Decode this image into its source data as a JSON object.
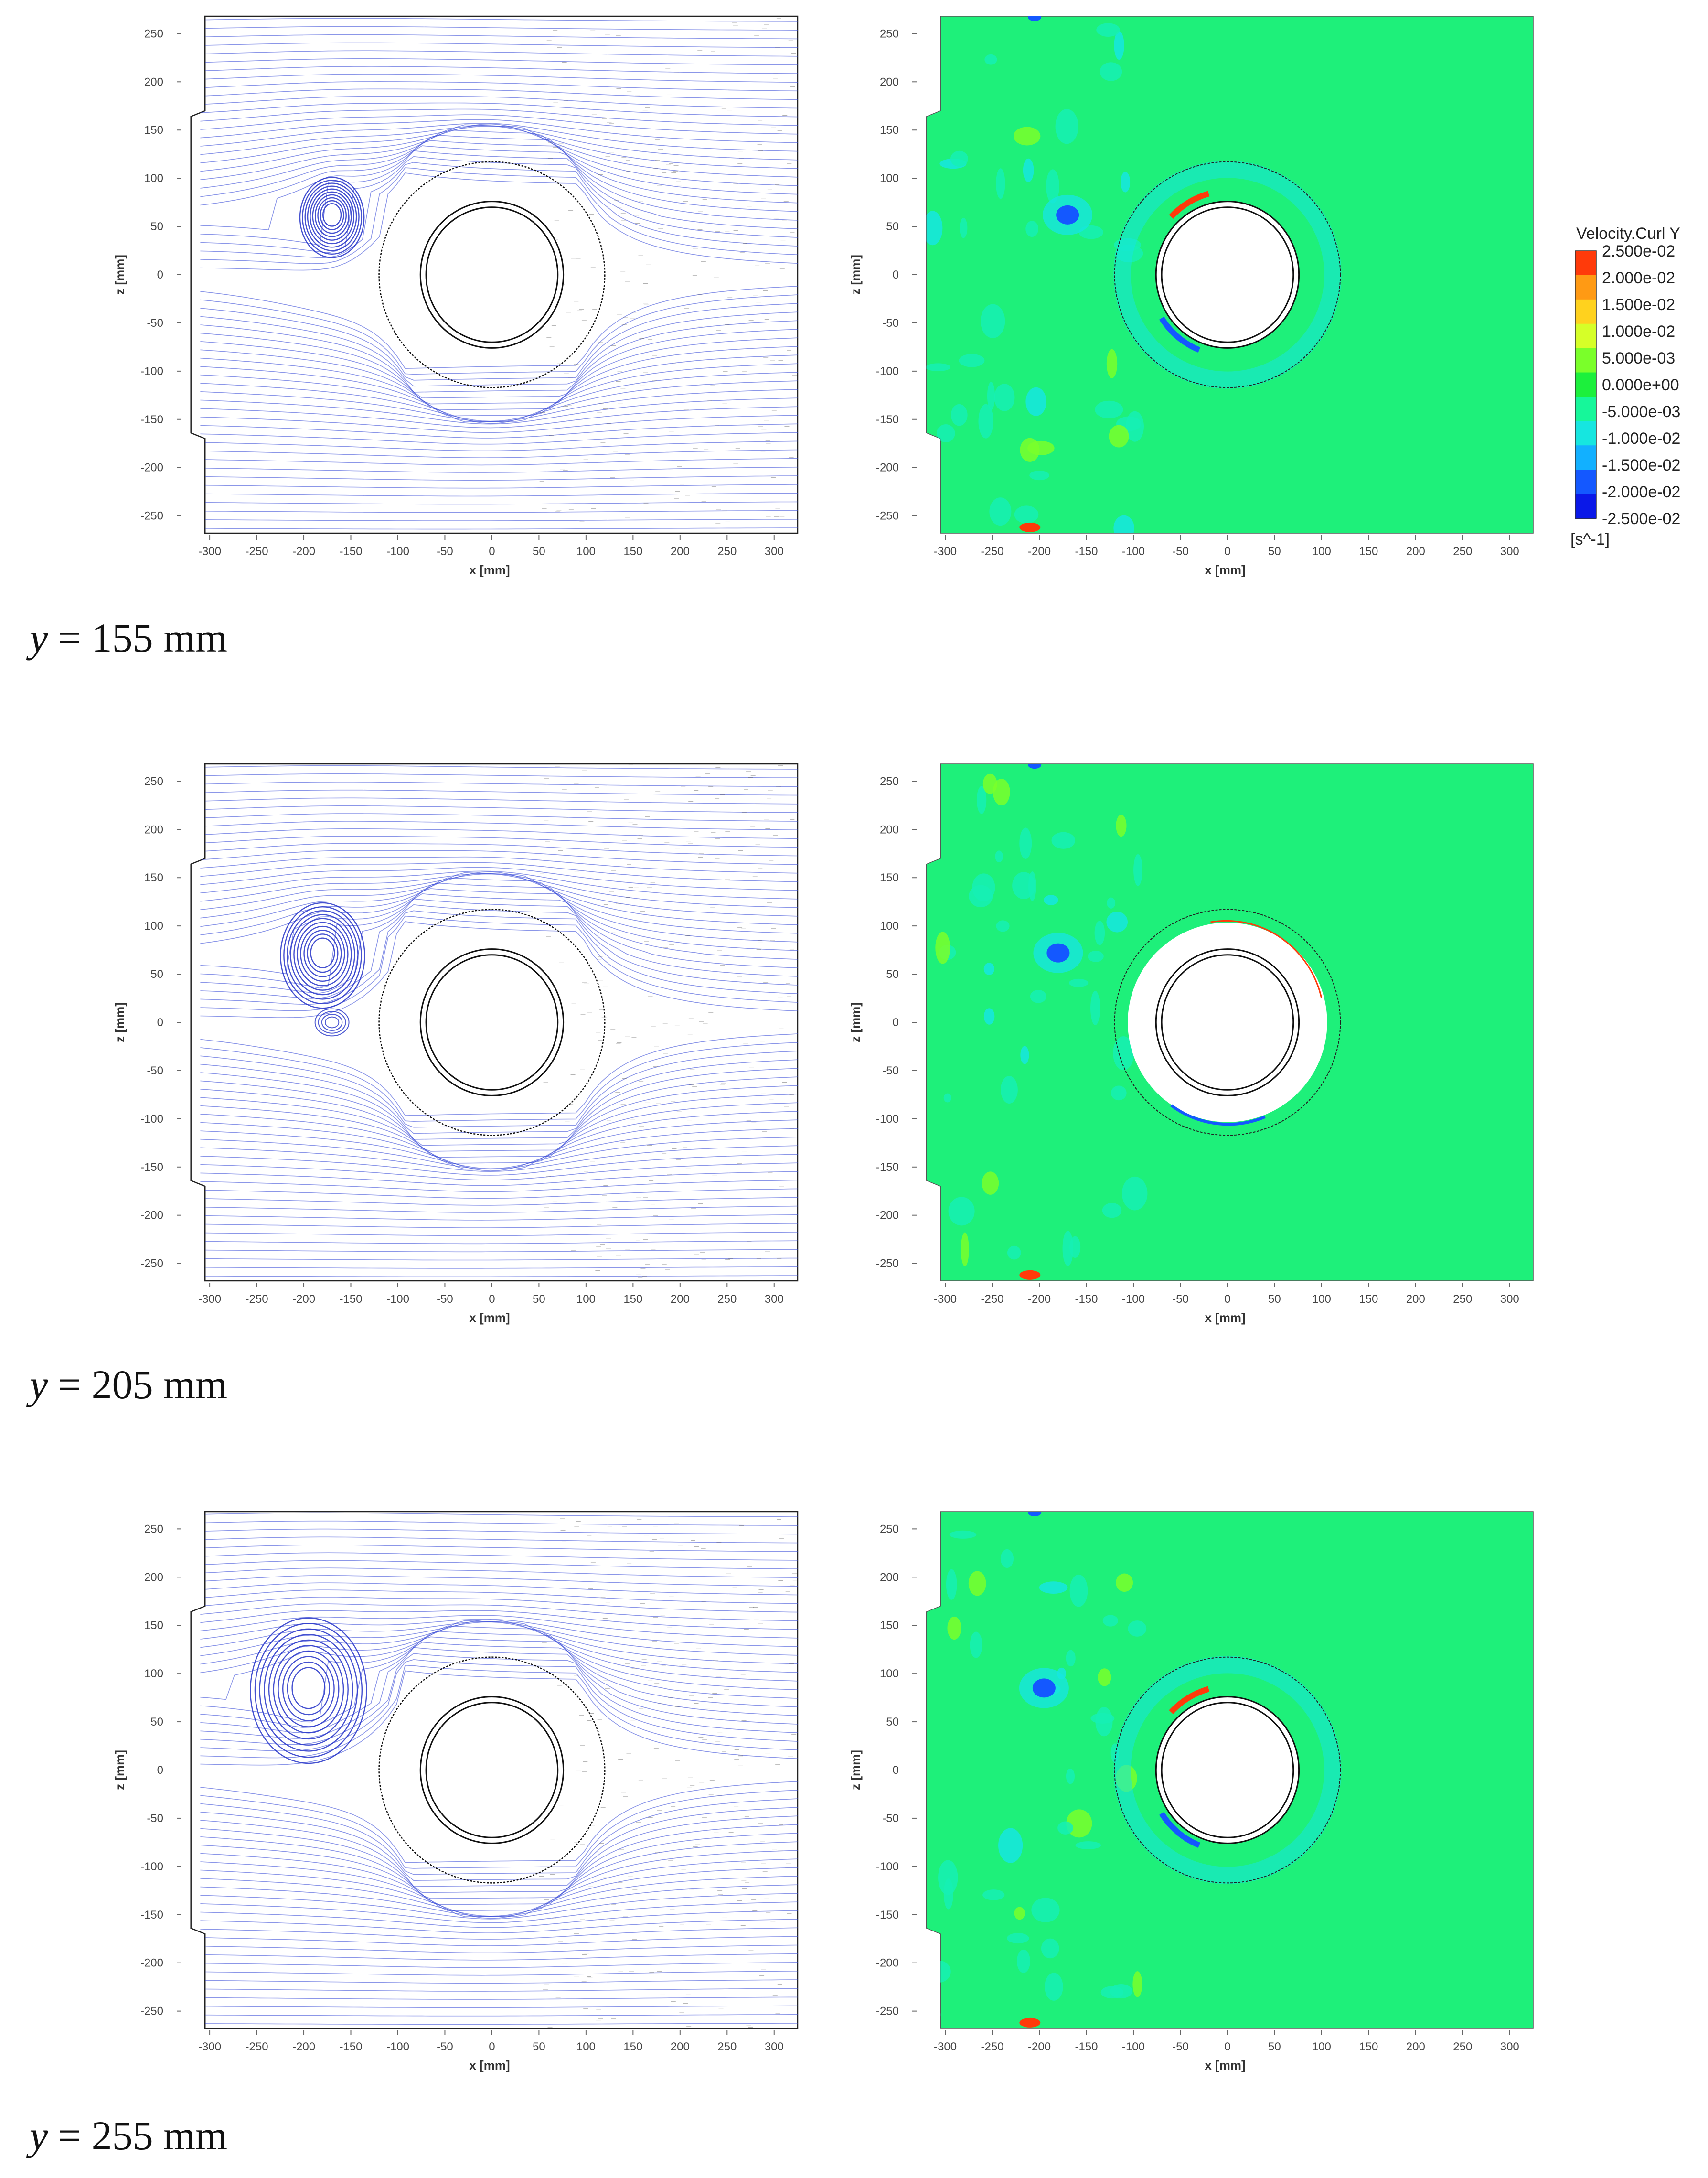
{
  "panels": [
    {
      "caption_var": "y",
      "caption_rest": " = 155 mm",
      "vortex": {
        "x": -170,
        "z": 62,
        "r": 32
      },
      "vortex2": null,
      "outer_ring_filled": false
    },
    {
      "caption_var": "y",
      "caption_rest": " = 205 mm",
      "vortex": {
        "x": -180,
        "z": 72,
        "r": 42
      },
      "vortex2": {
        "x": -170,
        "z": 0,
        "r": 18
      },
      "outer_ring_filled": true
    },
    {
      "caption_var": "y",
      "caption_rest": " = 255 mm",
      "vortex": {
        "x": -195,
        "z": 85,
        "r": 58
      },
      "vortex2": null,
      "outer_ring_filled": false
    }
  ],
  "axes": {
    "x_label": "x [mm]",
    "z_label": "z [mm]",
    "x_ticks": [
      "-300",
      "-250",
      "-200",
      "-150",
      "-100",
      "-50",
      "0",
      "50",
      "100",
      "150",
      "200",
      "250",
      "300"
    ],
    "z_ticks": [
      "250",
      "200",
      "150",
      "100",
      "50",
      "0",
      "-50",
      "-100",
      "-150",
      "-200",
      "-250"
    ],
    "x_range": [
      -330,
      325
    ],
    "z_range": [
      -270,
      270
    ]
  },
  "geometry": {
    "cylinder_inner_radius_mm": 70,
    "cylinder_outer_radius_mm": 76,
    "domain_circle_radius_mm": 120
  },
  "legend": {
    "title": "Velocity.Curl Y",
    "unit": "[s^-1]",
    "labels": [
      "2.500e-02",
      "2.000e-02",
      "1.500e-02",
      "1.000e-02",
      "5.000e-03",
      "0.000e+00",
      "-5.000e-03",
      "-1.000e-02",
      "-1.500e-02",
      "-2.000e-02",
      "-2.500e-02"
    ],
    "colors": [
      "#ff3a0a",
      "#ff9a14",
      "#ffd21e",
      "#d6ff28",
      "#7aff2a",
      "#1cf03c",
      "#16f79a",
      "#16e6e0",
      "#12b0ff",
      "#1458ff",
      "#0a18e8"
    ]
  },
  "colors": {
    "field_background": "#1ef07a",
    "streamline": "#2b3fd6",
    "frame": "#222222"
  }
}
